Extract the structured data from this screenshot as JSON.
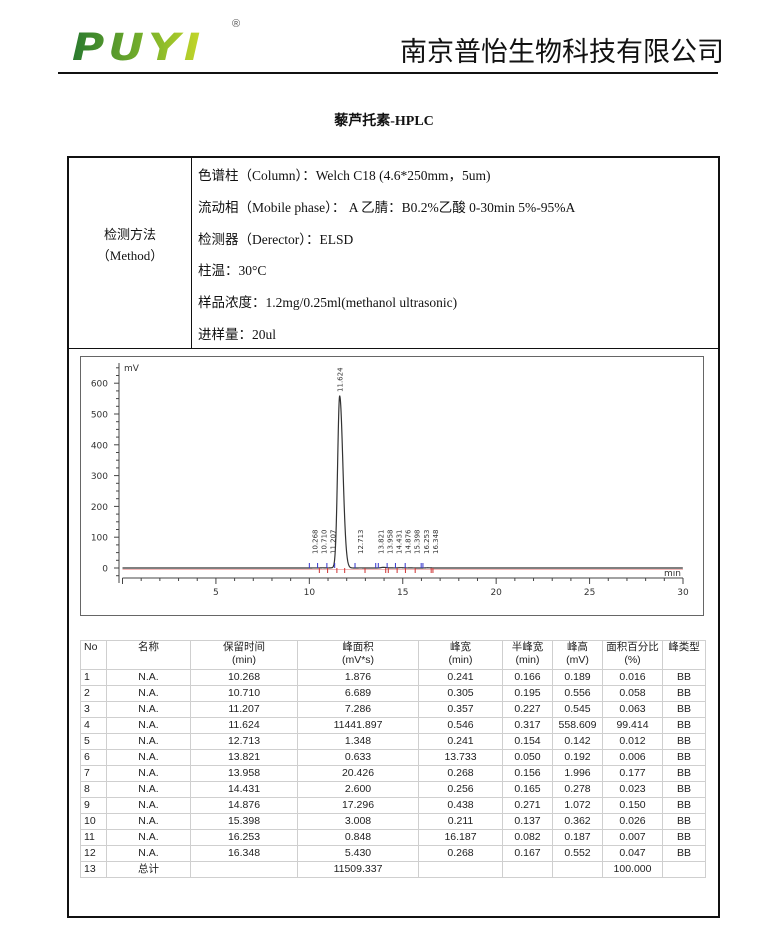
{
  "header": {
    "logo_text": "PUYI",
    "registered_mark": "®",
    "company": "南京普怡生物科技有限公司"
  },
  "title": "藜芦托素-HPLC",
  "method": {
    "label_cn": "检测方法",
    "label_en": "（Method）",
    "lines": [
      "色谱柱（Column）：Welch C18 (4.6*250mm，5um)",
      "流动相（Mobile phase）：  A 乙腈：B0.2%乙酸  0-30min 5%-95%A",
      "检测器（Derector）：ELSD",
      "柱温：30°C",
      "样品浓度：1.2mg/0.25ml(methanol ultrasonic)",
      "进样量：20ul"
    ]
  },
  "chart_data": {
    "type": "line",
    "xlabel": "min",
    "ylabel": "mV",
    "xlim": [
      0,
      30
    ],
    "ylim": [
      -30,
      650
    ],
    "x_ticks": [
      5,
      10,
      15,
      20,
      25,
      30
    ],
    "y_ticks": [
      0,
      100,
      200,
      300,
      400,
      500,
      600
    ],
    "grid": false,
    "peaks": [
      {
        "time": 10.268,
        "label": "10.268",
        "height": 0.189
      },
      {
        "time": 10.71,
        "label": "10.710",
        "height": 0.556
      },
      {
        "time": 11.207,
        "label": "11.207",
        "height": 0.545
      },
      {
        "time": 11.624,
        "label": "11.624",
        "height": 558.609
      },
      {
        "time": 12.713,
        "label": "12.713",
        "height": 0.142
      },
      {
        "time": 13.821,
        "label": "13.821",
        "height": 0.192
      },
      {
        "time": 13.958,
        "label": "13.958",
        "height": 1.996
      },
      {
        "time": 14.431,
        "label": "14.431",
        "height": 0.278
      },
      {
        "time": 14.876,
        "label": "14.876",
        "height": 1.072
      },
      {
        "time": 15.398,
        "label": "15.398",
        "height": 0.362
      },
      {
        "time": 16.253,
        "label": "16.253",
        "height": 0.187
      },
      {
        "time": 16.348,
        "label": "16.348",
        "height": 0.552
      }
    ],
    "colors": {
      "trace": "#333333",
      "start_marker": "#3333cc",
      "end_marker": "#cc3333"
    }
  },
  "table": {
    "headers": [
      [
        "No",
        ""
      ],
      [
        "名称",
        ""
      ],
      [
        "保留时间",
        "(min)"
      ],
      [
        "峰面积",
        "(mV*s)"
      ],
      [
        "峰宽",
        "(min)"
      ],
      [
        "半峰宽",
        "(min)"
      ],
      [
        "峰高",
        "(mV)"
      ],
      [
        "面积百分比",
        "(%)"
      ],
      [
        "峰类型",
        ""
      ]
    ],
    "rows": [
      [
        "1",
        "N.A.",
        "10.268",
        "1.876",
        "0.241",
        "0.166",
        "0.189",
        "0.016",
        "BB"
      ],
      [
        "2",
        "N.A.",
        "10.710",
        "6.689",
        "0.305",
        "0.195",
        "0.556",
        "0.058",
        "BB"
      ],
      [
        "3",
        "N.A.",
        "11.207",
        "7.286",
        "0.357",
        "0.227",
        "0.545",
        "0.063",
        "BB"
      ],
      [
        "4",
        "N.A.",
        "11.624",
        "11441.897",
        "0.546",
        "0.317",
        "558.609",
        "99.414",
        "BB"
      ],
      [
        "5",
        "N.A.",
        "12.713",
        "1.348",
        "0.241",
        "0.154",
        "0.142",
        "0.012",
        "BB"
      ],
      [
        "6",
        "N.A.",
        "13.821",
        "0.633",
        "13.733",
        "0.050",
        "0.192",
        "0.006",
        "BB"
      ],
      [
        "7",
        "N.A.",
        "13.958",
        "20.426",
        "0.268",
        "0.156",
        "1.996",
        "0.177",
        "BB"
      ],
      [
        "8",
        "N.A.",
        "14.431",
        "2.600",
        "0.256",
        "0.165",
        "0.278",
        "0.023",
        "BB"
      ],
      [
        "9",
        "N.A.",
        "14.876",
        "17.296",
        "0.438",
        "0.271",
        "1.072",
        "0.150",
        "BB"
      ],
      [
        "10",
        "N.A.",
        "15.398",
        "3.008",
        "0.211",
        "0.137",
        "0.362",
        "0.026",
        "BB"
      ],
      [
        "11",
        "N.A.",
        "16.253",
        "0.848",
        "16.187",
        "0.082",
        "0.187",
        "0.007",
        "BB"
      ],
      [
        "12",
        "N.A.",
        "16.348",
        "5.430",
        "0.268",
        "0.167",
        "0.552",
        "0.047",
        "BB"
      ],
      [
        "13",
        "总计",
        "",
        "11509.337",
        "",
        "",
        "",
        "100.000",
        ""
      ]
    ]
  }
}
